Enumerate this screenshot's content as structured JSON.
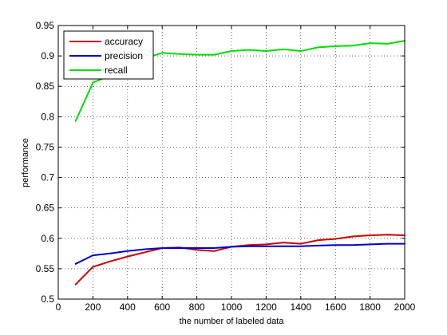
{
  "chart_data": {
    "type": "line",
    "title": "",
    "xlabel": "the number of labeled data",
    "ylabel": "performance",
    "xlim": [
      0,
      2000
    ],
    "ylim": [
      0.5,
      0.95
    ],
    "xticks": [
      0,
      200,
      400,
      600,
      800,
      1000,
      1200,
      1400,
      1600,
      1800,
      2000
    ],
    "yticks": [
      0.5,
      0.55,
      0.6,
      0.65,
      0.7,
      0.75,
      0.8,
      0.85,
      0.9,
      0.95
    ],
    "xtick_labels": [
      "0",
      "200",
      "400",
      "600",
      "800",
      "1000",
      "1200",
      "1400",
      "1600",
      "1800",
      "2000"
    ],
    "ytick_labels": [
      "0.5",
      "0.55",
      "0.6",
      "0.65",
      "0.7",
      "0.75",
      "0.8",
      "0.85",
      "0.9",
      "0.95"
    ],
    "grid": true,
    "grid_style": "dotted",
    "legend_position": "top-left",
    "x": [
      100,
      200,
      300,
      400,
      500,
      600,
      700,
      800,
      900,
      1000,
      1100,
      1200,
      1300,
      1400,
      1500,
      1600,
      1700,
      1800,
      1900,
      2000
    ],
    "series": [
      {
        "name": "accuracy",
        "color": "#cc0000",
        "values": [
          0.524,
          0.553,
          0.562,
          0.57,
          0.577,
          0.584,
          0.585,
          0.581,
          0.579,
          0.586,
          0.589,
          0.59,
          0.593,
          0.591,
          0.597,
          0.599,
          0.603,
          0.605,
          0.606,
          0.605
        ]
      },
      {
        "name": "precision",
        "color": "#0000cc",
        "values": [
          0.558,
          0.572,
          0.575,
          0.579,
          0.582,
          0.584,
          0.584,
          0.584,
          0.584,
          0.586,
          0.587,
          0.587,
          0.587,
          0.587,
          0.588,
          0.589,
          0.589,
          0.59,
          0.591,
          0.591
        ]
      },
      {
        "name": "recall",
        "color": "#00dd00",
        "values": [
          0.793,
          0.856,
          0.868,
          0.883,
          0.896,
          0.905,
          0.903,
          0.902,
          0.902,
          0.908,
          0.91,
          0.908,
          0.911,
          0.908,
          0.914,
          0.916,
          0.917,
          0.921,
          0.92,
          0.925
        ]
      }
    ]
  }
}
